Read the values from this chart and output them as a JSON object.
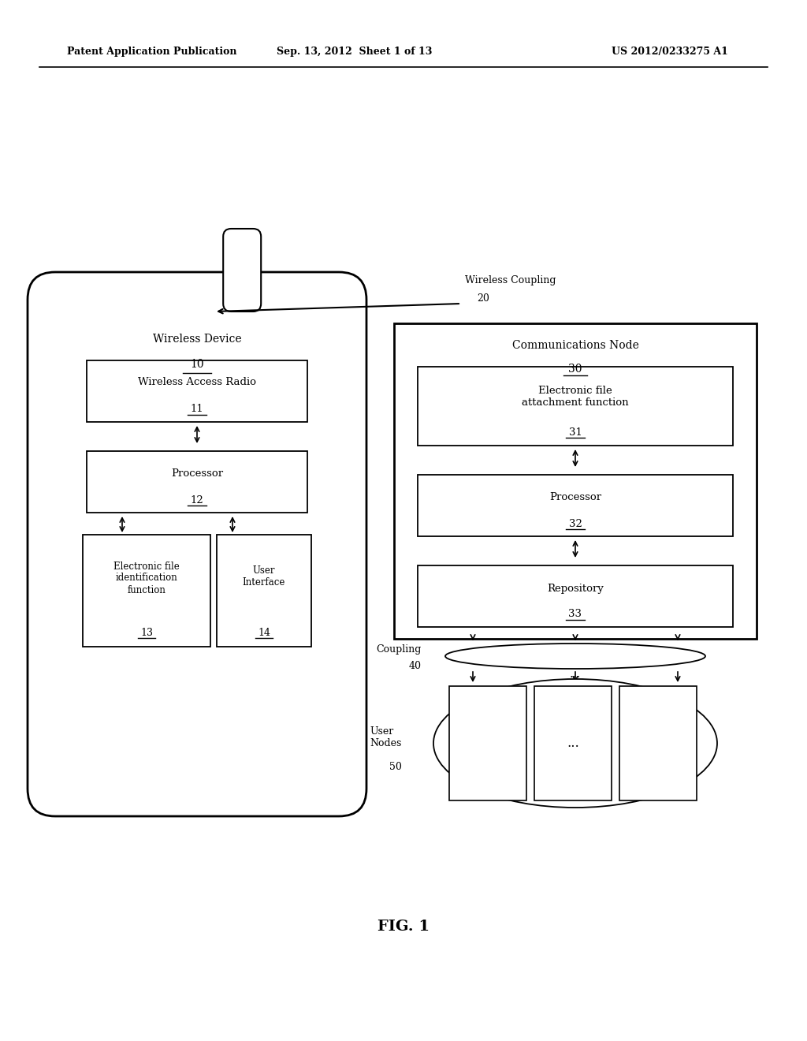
{
  "bg_color": "#ffffff",
  "header_left": "Patent Application Publication",
  "header_mid": "Sep. 13, 2012  Sheet 1 of 13",
  "header_right": "US 2012/0233275 A1",
  "fig_label": "FIG. 1",
  "phone_label": "Wireless Device",
  "phone_num": "10",
  "box1_label": "Wireless Access Radio",
  "box1_num": "11",
  "box2_label": "Processor",
  "box2_num": "12",
  "box3_label": "Electronic file\nidentification\nfunction",
  "box3_num": "13",
  "box4_label": "User\nInterface",
  "box4_num": "14",
  "comm_label": "Communications Node",
  "comm_num": "30",
  "cbox1_label": "Electronic file\nattachment function",
  "cbox1_num": "31",
  "cbox2_label": "Processor",
  "cbox2_num": "32",
  "cbox3_label": "Repository",
  "cbox3_num": "33",
  "wireless_label": "Wireless Coupling",
  "wireless_num": "20",
  "coupling_label": "Coupling",
  "coupling_num": "40",
  "user_nodes_label": "User\nNodes",
  "user_nodes_num": "50"
}
